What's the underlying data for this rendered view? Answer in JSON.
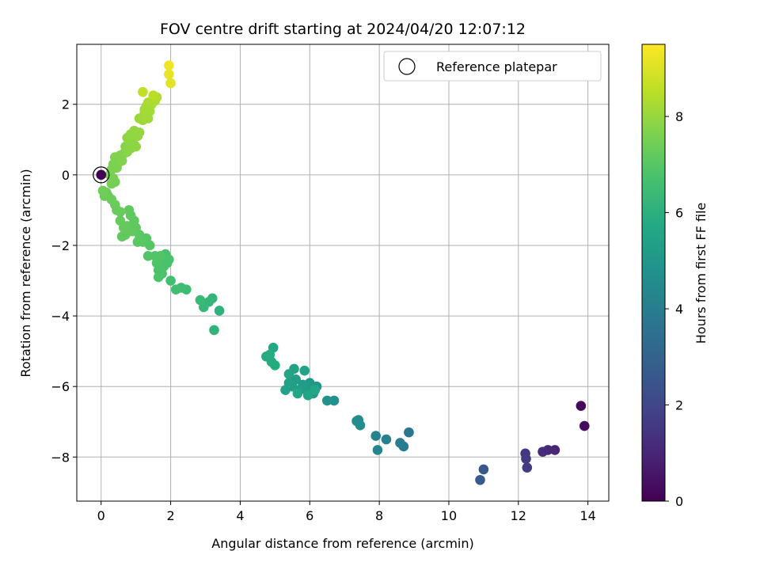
{
  "chart_data": {
    "type": "scatter",
    "title": "FOV centre drift starting at 2024/04/20 12:07:12",
    "xlabel": "Angular distance from reference (arcmin)",
    "ylabel": "Rotation from reference (arcmin)",
    "xlim": [
      -0.7,
      14.6
    ],
    "ylim": [
      -9.25,
      3.7
    ],
    "xticks": [
      0,
      2,
      4,
      6,
      8,
      10,
      12,
      14
    ],
    "yticks": [
      -8,
      -6,
      -4,
      -2,
      0,
      2
    ],
    "grid": true,
    "legend": {
      "placement": "top-right",
      "entries": [
        "Reference platepar"
      ]
    },
    "reference_point": {
      "x": 0,
      "y": 0
    },
    "colorbar": {
      "label": "Hours from first FF file",
      "colormap": "viridis",
      "range": [
        0,
        9.5
      ],
      "ticks": [
        0,
        2,
        4,
        6,
        8
      ]
    },
    "points": [
      {
        "x": 13.8,
        "y": -6.55,
        "c": 0.2
      },
      {
        "x": 13.9,
        "y": -7.12,
        "c": 0.3
      },
      {
        "x": 13.05,
        "y": -7.8,
        "c": 1.0
      },
      {
        "x": 12.85,
        "y": -7.8,
        "c": 1.1
      },
      {
        "x": 12.7,
        "y": -7.85,
        "c": 1.2
      },
      {
        "x": 12.2,
        "y": -7.9,
        "c": 1.5
      },
      {
        "x": 12.22,
        "y": -8.05,
        "c": 1.6
      },
      {
        "x": 12.25,
        "y": -8.3,
        "c": 1.7
      },
      {
        "x": 11.0,
        "y": -8.35,
        "c": 2.6
      },
      {
        "x": 10.9,
        "y": -8.65,
        "c": 2.7
      },
      {
        "x": 8.85,
        "y": -7.3,
        "c": 3.8
      },
      {
        "x": 8.7,
        "y": -7.7,
        "c": 3.9
      },
      {
        "x": 8.6,
        "y": -7.6,
        "c": 4.0
      },
      {
        "x": 8.2,
        "y": -7.5,
        "c": 4.1
      },
      {
        "x": 7.9,
        "y": -7.4,
        "c": 4.2
      },
      {
        "x": 7.95,
        "y": -7.8,
        "c": 4.3
      },
      {
        "x": 7.4,
        "y": -6.95,
        "c": 4.5
      },
      {
        "x": 7.45,
        "y": -7.1,
        "c": 4.55
      },
      {
        "x": 7.35,
        "y": -6.98,
        "c": 4.6
      },
      {
        "x": 6.7,
        "y": -6.4,
        "c": 4.8
      },
      {
        "x": 6.5,
        "y": -6.4,
        "c": 4.85
      },
      {
        "x": 6.2,
        "y": -6.0,
        "c": 5.0
      },
      {
        "x": 6.1,
        "y": -6.2,
        "c": 5.05
      },
      {
        "x": 6.0,
        "y": -5.9,
        "c": 5.1
      },
      {
        "x": 5.9,
        "y": -6.1,
        "c": 5.15
      },
      {
        "x": 5.8,
        "y": -5.95,
        "c": 5.2
      },
      {
        "x": 5.7,
        "y": -6.1,
        "c": 5.25
      },
      {
        "x": 5.6,
        "y": -5.8,
        "c": 5.3
      },
      {
        "x": 5.5,
        "y": -6.0,
        "c": 5.35
      },
      {
        "x": 5.4,
        "y": -5.9,
        "c": 5.4
      },
      {
        "x": 5.3,
        "y": -6.1,
        "c": 5.45
      },
      {
        "x": 5.85,
        "y": -5.55,
        "c": 5.5
      },
      {
        "x": 5.55,
        "y": -5.5,
        "c": 5.5
      },
      {
        "x": 5.4,
        "y": -5.65,
        "c": 5.55
      },
      {
        "x": 5.95,
        "y": -6.25,
        "c": 5.55
      },
      {
        "x": 5.65,
        "y": -6.2,
        "c": 5.6
      },
      {
        "x": 6.15,
        "y": -6.1,
        "c": 5.6
      },
      {
        "x": 4.95,
        "y": -4.9,
        "c": 5.7
      },
      {
        "x": 4.75,
        "y": -5.15,
        "c": 5.75
      },
      {
        "x": 4.9,
        "y": -5.3,
        "c": 5.8
      },
      {
        "x": 5.0,
        "y": -5.4,
        "c": 5.8
      },
      {
        "x": 4.85,
        "y": -5.1,
        "c": 5.85
      },
      {
        "x": 3.4,
        "y": -3.85,
        "c": 6.1
      },
      {
        "x": 3.25,
        "y": -4.4,
        "c": 6.15
      },
      {
        "x": 3.2,
        "y": -3.5,
        "c": 6.2
      },
      {
        "x": 3.1,
        "y": -3.6,
        "c": 6.25
      },
      {
        "x": 2.95,
        "y": -3.75,
        "c": 6.3
      },
      {
        "x": 2.85,
        "y": -3.55,
        "c": 6.35
      },
      {
        "x": 2.45,
        "y": -3.25,
        "c": 6.5
      },
      {
        "x": 2.3,
        "y": -3.2,
        "c": 6.55
      },
      {
        "x": 2.15,
        "y": -3.25,
        "c": 6.6
      },
      {
        "x": 2.0,
        "y": -3.0,
        "c": 6.65
      },
      {
        "x": 1.9,
        "y": -2.5,
        "c": 6.7
      },
      {
        "x": 1.85,
        "y": -2.25,
        "c": 6.72
      },
      {
        "x": 1.95,
        "y": -2.4,
        "c": 6.74
      },
      {
        "x": 1.8,
        "y": -2.6,
        "c": 6.76
      },
      {
        "x": 1.7,
        "y": -2.4,
        "c": 6.78
      },
      {
        "x": 1.65,
        "y": -2.7,
        "c": 6.8
      },
      {
        "x": 1.75,
        "y": -2.8,
        "c": 6.82
      },
      {
        "x": 1.65,
        "y": -2.9,
        "c": 6.84
      },
      {
        "x": 1.6,
        "y": -2.5,
        "c": 6.86
      },
      {
        "x": 1.55,
        "y": -2.3,
        "c": 6.88
      },
      {
        "x": 1.7,
        "y": -2.3,
        "c": 6.9
      },
      {
        "x": 1.35,
        "y": -2.3,
        "c": 6.9
      },
      {
        "x": 1.4,
        "y": -2.0,
        "c": 6.95
      },
      {
        "x": 1.3,
        "y": -1.8,
        "c": 7.0
      },
      {
        "x": 1.2,
        "y": -1.9,
        "c": 7.0
      },
      {
        "x": 1.1,
        "y": -1.7,
        "c": 7.05
      },
      {
        "x": 1.05,
        "y": -1.9,
        "c": 7.05
      },
      {
        "x": 1.0,
        "y": -1.5,
        "c": 7.1
      },
      {
        "x": 0.95,
        "y": -1.3,
        "c": 7.1
      },
      {
        "x": 0.85,
        "y": -1.15,
        "c": 7.12
      },
      {
        "x": 0.8,
        "y": -1.0,
        "c": 7.14
      },
      {
        "x": 0.9,
        "y": -1.6,
        "c": 7.16
      },
      {
        "x": 0.75,
        "y": -1.45,
        "c": 7.18
      },
      {
        "x": 0.7,
        "y": -1.7,
        "c": 7.2
      },
      {
        "x": 0.6,
        "y": -1.75,
        "c": 7.2
      },
      {
        "x": 0.65,
        "y": -1.5,
        "c": 7.22
      },
      {
        "x": 0.55,
        "y": -1.3,
        "c": 7.24
      },
      {
        "x": 0.55,
        "y": -1.05,
        "c": 7.26
      },
      {
        "x": 0.45,
        "y": -1.0,
        "c": 7.28
      },
      {
        "x": 0.4,
        "y": -0.85,
        "c": 7.3
      },
      {
        "x": 0.3,
        "y": -0.7,
        "c": 7.32
      },
      {
        "x": 0.2,
        "y": -0.6,
        "c": 7.34
      },
      {
        "x": 0.15,
        "y": -0.5,
        "c": 7.36
      },
      {
        "x": 0.1,
        "y": -0.6,
        "c": 7.38
      },
      {
        "x": 0.05,
        "y": -0.45,
        "c": 7.4
      },
      {
        "x": 0.3,
        "y": -0.25,
        "c": 7.5
      },
      {
        "x": 0.4,
        "y": -0.2,
        "c": 7.52
      },
      {
        "x": 0.35,
        "y": -0.1,
        "c": 7.54
      },
      {
        "x": 0.25,
        "y": 0.0,
        "c": 7.56
      },
      {
        "x": 0.3,
        "y": 0.15,
        "c": 7.58
      },
      {
        "x": 0.35,
        "y": 0.3,
        "c": 7.6
      },
      {
        "x": 0.45,
        "y": 0.2,
        "c": 7.62
      },
      {
        "x": 0.5,
        "y": 0.35,
        "c": 7.64
      },
      {
        "x": 0.4,
        "y": 0.5,
        "c": 7.66
      },
      {
        "x": 0.55,
        "y": 0.55,
        "c": 7.68
      },
      {
        "x": 0.6,
        "y": 0.4,
        "c": 7.7
      },
      {
        "x": 0.65,
        "y": 0.6,
        "c": 7.72
      },
      {
        "x": 0.7,
        "y": 0.8,
        "c": 7.76
      },
      {
        "x": 0.75,
        "y": 0.65,
        "c": 7.78
      },
      {
        "x": 0.8,
        "y": 0.9,
        "c": 7.8
      },
      {
        "x": 0.85,
        "y": 0.75,
        "c": 7.82
      },
      {
        "x": 0.9,
        "y": 1.0,
        "c": 7.84
      },
      {
        "x": 0.95,
        "y": 0.85,
        "c": 7.86
      },
      {
        "x": 1.0,
        "y": 0.8,
        "c": 7.88
      },
      {
        "x": 0.75,
        "y": 1.05,
        "c": 7.9
      },
      {
        "x": 0.85,
        "y": 1.15,
        "c": 7.92
      },
      {
        "x": 0.95,
        "y": 1.25,
        "c": 7.94
      },
      {
        "x": 1.05,
        "y": 1.1,
        "c": 7.96
      },
      {
        "x": 1.1,
        "y": 1.2,
        "c": 7.98
      },
      {
        "x": 1.1,
        "y": 1.6,
        "c": 8.1
      },
      {
        "x": 1.2,
        "y": 1.55,
        "c": 8.12
      },
      {
        "x": 1.25,
        "y": 1.75,
        "c": 8.14
      },
      {
        "x": 1.35,
        "y": 1.6,
        "c": 8.16
      },
      {
        "x": 1.4,
        "y": 1.8,
        "c": 8.18
      },
      {
        "x": 1.3,
        "y": 1.95,
        "c": 8.2
      },
      {
        "x": 1.45,
        "y": 2.0,
        "c": 8.25
      },
      {
        "x": 1.55,
        "y": 2.1,
        "c": 8.3
      },
      {
        "x": 1.6,
        "y": 2.2,
        "c": 8.35
      },
      {
        "x": 1.35,
        "y": 2.05,
        "c": 8.3
      },
      {
        "x": 1.25,
        "y": 1.85,
        "c": 8.2
      },
      {
        "x": 1.2,
        "y": 2.35,
        "c": 8.6
      },
      {
        "x": 1.5,
        "y": 2.25,
        "c": 8.5
      },
      {
        "x": 1.95,
        "y": 3.1,
        "c": 9.3
      },
      {
        "x": 1.95,
        "y": 2.85,
        "c": 9.2
      },
      {
        "x": 2.0,
        "y": 2.6,
        "c": 9.1
      }
    ]
  }
}
